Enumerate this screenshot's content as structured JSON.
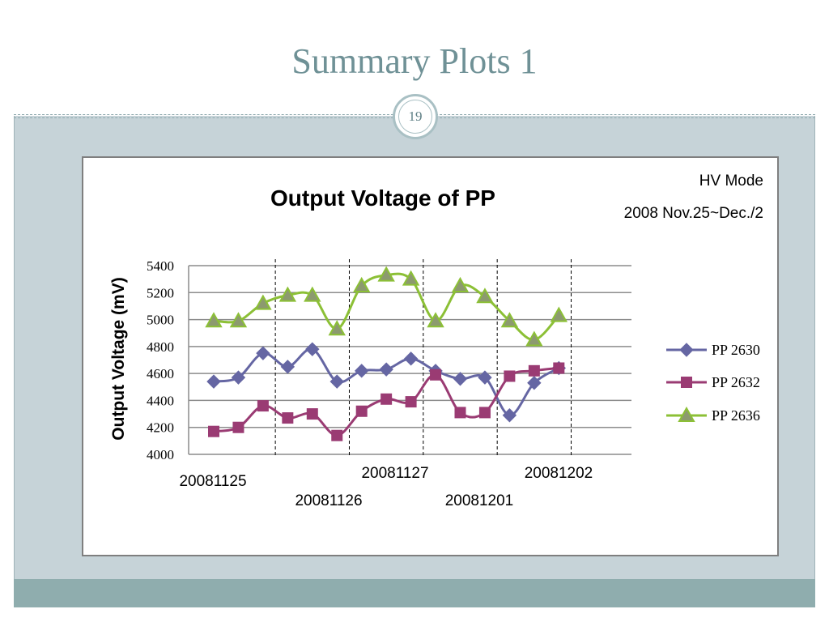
{
  "slide": {
    "title": "Summary Plots 1",
    "page_number": "19"
  },
  "chart_data": {
    "type": "line",
    "title": "Output Voltage of PP",
    "annotations": [
      "HV Mode",
      "2008 Nov.25~Dec./2"
    ],
    "xlabel": "",
    "ylabel": "Output Voltage (mV)",
    "ylim": [
      4000,
      5400
    ],
    "yticks": [
      4000,
      4200,
      4400,
      4600,
      4800,
      5000,
      5200,
      5400
    ],
    "grid": true,
    "legend": "right",
    "smooth": true,
    "date_labels": [
      "20081125",
      "20081126",
      "20081127",
      "20081201",
      "20081202"
    ],
    "date_boundaries_after_point": [
      2,
      5,
      8,
      11,
      14
    ],
    "series": [
      {
        "name": "PP 2630",
        "marker": "diamond",
        "color": "#6566a3",
        "values": [
          4540,
          4570,
          4750,
          4650,
          4780,
          4540,
          4620,
          4630,
          4710,
          4620,
          4560,
          4570,
          4290,
          4530,
          4640
        ]
      },
      {
        "name": "PP 2632",
        "marker": "square",
        "color": "#9a3b73",
        "values": [
          4170,
          4200,
          4360,
          4270,
          4300,
          4140,
          4320,
          4410,
          4390,
          4590,
          4310,
          4310,
          4580,
          4620,
          4640
        ]
      },
      {
        "name": "PP 2636",
        "marker": "triangle",
        "color": "#8cc036",
        "values": [
          4990,
          4990,
          5120,
          5180,
          5180,
          4930,
          5250,
          5330,
          5300,
          4990,
          5250,
          5170,
          4990,
          4850,
          5030
        ]
      }
    ]
  }
}
